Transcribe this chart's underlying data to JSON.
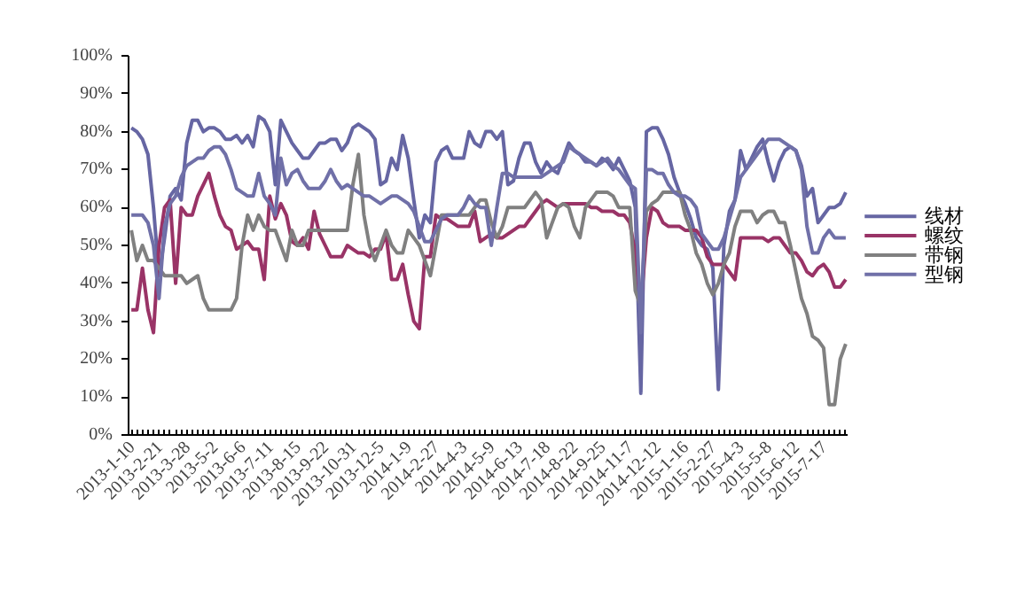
{
  "chart_data": {
    "type": "line",
    "categories": [
      "2013-1-10",
      null,
      null,
      null,
      null,
      "2013-2-21",
      null,
      null,
      null,
      null,
      "2013-3-28",
      null,
      null,
      null,
      null,
      "2013-5-2",
      null,
      null,
      null,
      null,
      "2013-6-6",
      null,
      null,
      null,
      null,
      "2013-7-11",
      null,
      null,
      null,
      null,
      "2013-8-15",
      null,
      null,
      null,
      null,
      "2013-9-22",
      null,
      null,
      null,
      null,
      "2013-10-31",
      null,
      null,
      null,
      null,
      "2013-12-5",
      null,
      null,
      null,
      null,
      "2014-1-9",
      null,
      null,
      null,
      null,
      "2014-2-27",
      null,
      null,
      null,
      null,
      "2014-4-3",
      null,
      null,
      null,
      null,
      "2014-5-9",
      null,
      null,
      null,
      null,
      "2014-6-13",
      null,
      null,
      null,
      null,
      "2014-7-18",
      null,
      null,
      null,
      null,
      "2014-8-22",
      null,
      null,
      null,
      null,
      "2014-9-25",
      null,
      null,
      null,
      null,
      "2014-11-7",
      null,
      null,
      null,
      null,
      "2014-12-12",
      null,
      null,
      null,
      null,
      "2015-1-16",
      null,
      null,
      null,
      null,
      "2015-2-27",
      null,
      null,
      null,
      null,
      "2015-4-3",
      null,
      null,
      null,
      null,
      "2015-5-8",
      null,
      null,
      null,
      null,
      "2015-6-12",
      null,
      null,
      null,
      null,
      "2015-7-17",
      null,
      null,
      null,
      null
    ],
    "series": [
      {
        "name": "线材",
        "color": "#6666a3",
        "values": [
          81,
          80,
          78,
          74,
          60,
          42,
          52,
          63,
          65,
          62,
          77,
          83,
          83,
          80,
          81,
          81,
          80,
          78,
          78,
          79,
          77,
          79,
          76,
          84,
          83,
          80,
          66,
          83,
          80,
          77,
          75,
          73,
          73,
          75,
          77,
          77,
          78,
          78,
          75,
          77,
          81,
          82,
          81,
          80,
          78,
          66,
          67,
          73,
          70,
          79,
          73,
          62,
          52,
          58,
          56,
          72,
          75,
          76,
          73,
          73,
          73,
          80,
          77,
          76,
          80,
          80,
          78,
          80,
          66,
          67,
          73,
          77,
          77,
          72,
          69,
          72,
          70,
          69,
          73,
          77,
          75,
          74,
          72,
          72,
          71,
          73,
          72,
          70,
          73,
          70,
          67,
          60,
          11,
          80,
          81,
          81,
          78,
          74,
          68,
          64,
          61,
          57,
          52,
          50,
          49,
          44,
          12,
          50,
          59,
          62,
          75,
          70,
          73,
          76,
          78,
          72,
          67,
          72,
          75,
          76,
          75,
          71,
          63,
          65,
          56,
          58,
          60,
          60,
          61,
          64
        ]
      },
      {
        "name": "螺纹",
        "color": "#993366",
        "values": [
          33,
          33,
          44,
          33,
          27,
          50,
          60,
          62,
          40,
          60,
          58,
          58,
          63,
          66,
          69,
          63,
          58,
          55,
          54,
          49,
          50,
          51,
          49,
          49,
          41,
          63,
          57,
          61,
          58,
          51,
          50,
          52,
          49,
          59,
          53,
          50,
          47,
          47,
          47,
          50,
          49,
          48,
          48,
          47,
          49,
          49,
          53,
          41,
          41,
          45,
          37,
          30,
          28,
          47,
          47,
          58,
          57,
          57,
          56,
          55,
          55,
          55,
          59,
          51,
          52,
          53,
          52,
          52,
          53,
          54,
          55,
          55,
          57,
          59,
          61,
          62,
          61,
          60,
          61,
          61,
          61,
          61,
          61,
          60,
          60,
          59,
          59,
          59,
          58,
          58,
          56,
          48,
          34,
          52,
          60,
          59,
          56,
          55,
          55,
          55,
          54,
          54,
          54,
          52,
          47,
          45,
          45,
          45,
          43,
          41,
          52,
          52,
          52,
          52,
          52,
          51,
          52,
          52,
          50,
          48,
          48,
          46,
          43,
          42,
          44,
          45,
          43,
          39,
          39,
          41
        ]
      },
      {
        "name": "带钢",
        "color": "#808080",
        "values": [
          54,
          46,
          50,
          46,
          46,
          44,
          42,
          42,
          42,
          42,
          40,
          41,
          42,
          36,
          33,
          33,
          33,
          33,
          33,
          36,
          50,
          58,
          54,
          58,
          55,
          54,
          54,
          50,
          46,
          54,
          50,
          50,
          54,
          54,
          54,
          54,
          54,
          54,
          54,
          54,
          66,
          74,
          58,
          50,
          46,
          50,
          54,
          50,
          48,
          48,
          54,
          52,
          50,
          46,
          42,
          50,
          58,
          58,
          58,
          58,
          58,
          58,
          60,
          62,
          62,
          56,
          52,
          55,
          60,
          60,
          60,
          60,
          62,
          64,
          62,
          52,
          56,
          60,
          61,
          60,
          55,
          52,
          60,
          62,
          64,
          64,
          64,
          63,
          60,
          60,
          60,
          38,
          34,
          59,
          61,
          62,
          64,
          64,
          64,
          64,
          58,
          54,
          48,
          45,
          40,
          37,
          40,
          45,
          48,
          55,
          59,
          59,
          59,
          56,
          58,
          59,
          59,
          56,
          56,
          50,
          43,
          36,
          32,
          26,
          25,
          23,
          8,
          8,
          20,
          24
        ]
      },
      {
        "name": "型钢",
        "color": "#7070a8",
        "values": [
          58,
          58,
          58,
          56,
          50,
          36,
          55,
          61,
          63,
          68,
          71,
          72,
          73,
          73,
          75,
          76,
          76,
          74,
          70,
          65,
          64,
          63,
          63,
          69,
          63,
          61,
          58,
          73,
          66,
          69,
          70,
          67,
          65,
          65,
          65,
          67,
          70,
          67,
          65,
          66,
          65,
          64,
          63,
          63,
          62,
          61,
          62,
          63,
          63,
          62,
          61,
          59,
          55,
          51,
          51,
          54,
          57,
          58,
          58,
          58,
          60,
          63,
          61,
          60,
          60,
          50,
          60,
          69,
          69,
          68,
          68,
          68,
          68,
          68,
          68,
          69,
          70,
          71,
          72,
          76,
          75,
          74,
          73,
          72,
          71,
          72,
          73,
          71,
          70,
          68,
          66,
          65,
          27,
          70,
          70,
          69,
          69,
          66,
          64,
          63,
          63,
          62,
          60,
          53,
          51,
          49,
          49,
          52,
          57,
          62,
          68,
          70,
          72,
          74,
          76,
          78,
          78,
          78,
          77,
          76,
          75,
          70,
          55,
          48,
          48,
          52,
          54,
          52,
          52,
          52
        ]
      }
    ],
    "ylim": [
      0,
      100
    ],
    "yticks": [
      {
        "value": 0,
        "label": "0%"
      },
      {
        "value": 10,
        "label": "10%"
      },
      {
        "value": 20,
        "label": "20%"
      },
      {
        "value": 30,
        "label": "30%"
      },
      {
        "value": 40,
        "label": "40%"
      },
      {
        "value": 50,
        "label": "50%"
      },
      {
        "value": 60,
        "label": "60%"
      },
      {
        "value": 70,
        "label": "70%"
      },
      {
        "value": 80,
        "label": "80%"
      },
      {
        "value": 90,
        "label": "90%"
      },
      {
        "value": 100,
        "label": "100%"
      }
    ],
    "grid": false,
    "legend": "right",
    "marker": "none",
    "line_style": "solid"
  }
}
